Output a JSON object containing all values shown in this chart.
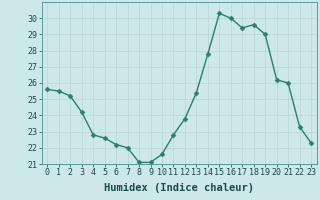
{
  "x": [
    0,
    1,
    2,
    3,
    4,
    5,
    6,
    7,
    8,
    9,
    10,
    11,
    12,
    13,
    14,
    15,
    16,
    17,
    18,
    19,
    20,
    21,
    22,
    23
  ],
  "y": [
    25.6,
    25.5,
    25.2,
    24.2,
    22.8,
    22.6,
    22.2,
    22.0,
    21.1,
    21.1,
    21.6,
    22.8,
    23.8,
    25.4,
    27.8,
    30.3,
    30.0,
    29.4,
    29.6,
    29.0,
    26.2,
    26.0,
    23.3,
    22.3
  ],
  "line_color": "#2e7d6e",
  "marker": "D",
  "marker_size": 2.5,
  "bg_color": "#cce8ea",
  "grid_color": "#b8d4d6",
  "xlabel": "Humidex (Indice chaleur)",
  "ylim": [
    21,
    31
  ],
  "yticks": [
    21,
    22,
    23,
    24,
    25,
    26,
    27,
    28,
    29,
    30
  ],
  "xlim": [
    -0.5,
    23.5
  ],
  "xticks": [
    0,
    1,
    2,
    3,
    4,
    5,
    6,
    7,
    8,
    9,
    10,
    11,
    12,
    13,
    14,
    15,
    16,
    17,
    18,
    19,
    20,
    21,
    22,
    23
  ],
  "xlabel_fontsize": 7.5,
  "tick_fontsize": 6.0,
  "line_width": 1.0,
  "spine_color": "#5a9a9a"
}
